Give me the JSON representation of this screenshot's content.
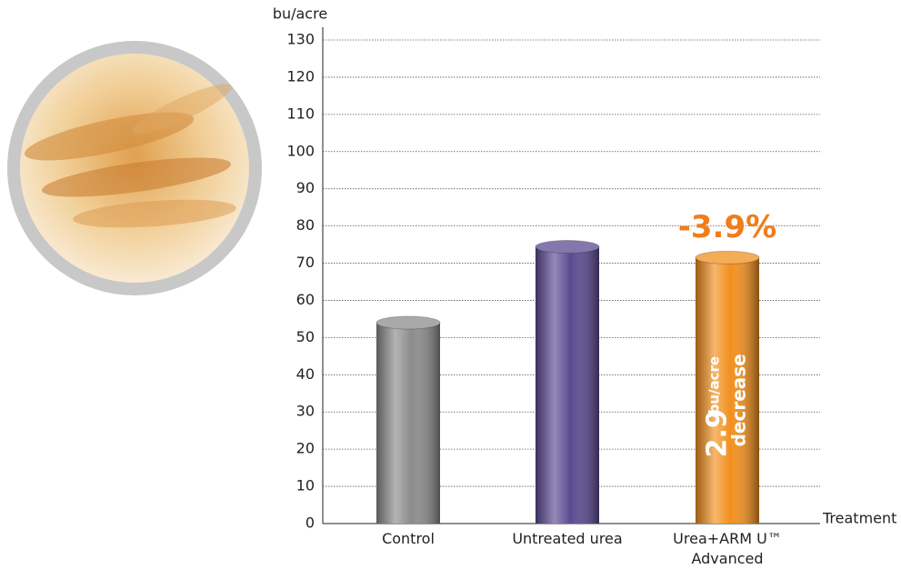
{
  "chart_data": {
    "type": "bar",
    "y_label": "bu/acre",
    "x_label": "Treatment",
    "categories": [
      "Control",
      "Untreated urea",
      "Urea+ARM U™ Advanced"
    ],
    "values": [
      54,
      74.4,
      71.5
    ],
    "colors": [
      "#8c8c8c",
      "#5b4a92",
      "#f2901e"
    ],
    "ylim": [
      0,
      130
    ],
    "yticks": [
      0,
      10,
      20,
      30,
      40,
      50,
      60,
      70,
      80,
      90,
      100,
      110,
      120,
      130
    ],
    "grid": true,
    "annotations": {
      "change": "-3.9%",
      "difference": "2.9",
      "difference_unit": "bu/acre",
      "difference_note": "decrease"
    }
  }
}
